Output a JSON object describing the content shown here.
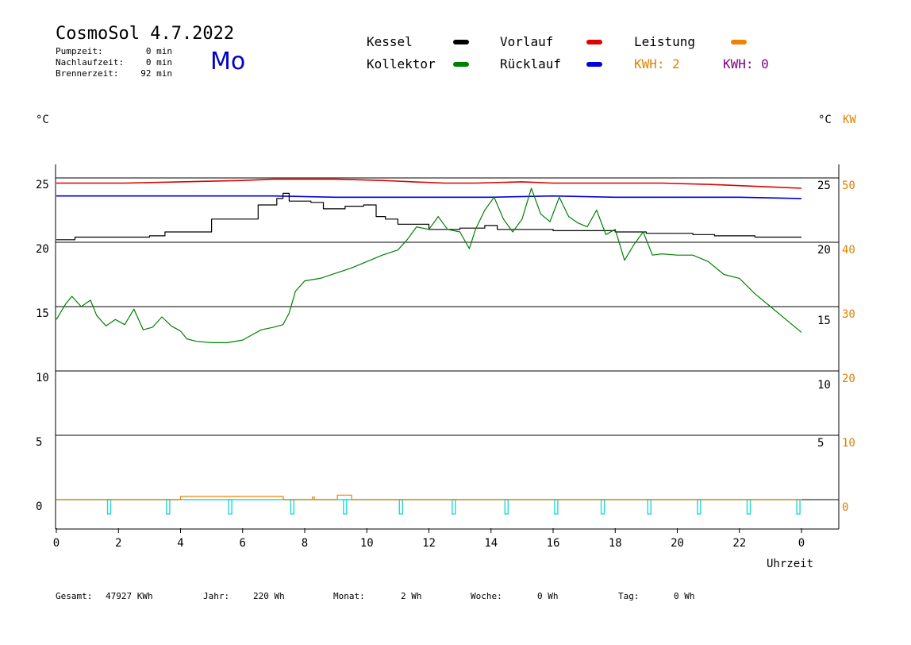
{
  "header": {
    "title": "CosmoSol 4.7.2022",
    "weekday": "Mo",
    "stats": [
      {
        "label": "Pumpzeit:",
        "value": "0 min"
      },
      {
        "label": "Nachlaufzeit:",
        "value": "0 min"
      },
      {
        "label": "Brennerzeit:",
        "value": "92 min"
      }
    ]
  },
  "legend": {
    "kessel": {
      "label": "Kessel",
      "color": "#000000"
    },
    "kollektor": {
      "label": "Kollektor",
      "color": "#008000"
    },
    "vorlauf": {
      "label": "Vorlauf",
      "color": "#e00000"
    },
    "ruecklauf": {
      "label": "Rücklauf",
      "color": "#0000e0"
    },
    "leistung": {
      "label": "Leistung",
      "color": "#f08000"
    },
    "kwh1": {
      "label": "KWH: 2",
      "color": "#e08000"
    },
    "kwh2": {
      "label": "KWH: 0",
      "color": "#800080"
    }
  },
  "axes": {
    "left_unit": "°C",
    "right_unit1": "°C",
    "right_unit2": "KW",
    "xlabel": "Uhrzeit"
  },
  "footer": {
    "gesamt_label": "Gesamt:",
    "gesamt_value": "47927 KWh",
    "jahr_label": "Jahr:",
    "jahr_value": "220 Wh",
    "monat_label": "Monat:",
    "monat_value": "2 Wh",
    "woche_label": "Woche:",
    "woche_value": "0 Wh",
    "tag_label": "Tag:",
    "tag_value": "0 Wh"
  },
  "chart_data": {
    "type": "line",
    "x_range": [
      0,
      24
    ],
    "x_ticks": [
      "0",
      "2",
      "4",
      "6",
      "8",
      "10",
      "12",
      "14",
      "16",
      "18",
      "20",
      "22",
      "0"
    ],
    "y_left_range": [
      -2,
      27
    ],
    "y_left_ticks": [
      "0",
      "5",
      "10",
      "15",
      "20",
      "25"
    ],
    "y_right1_ticks": [
      "5",
      "10",
      "15",
      "20",
      "25"
    ],
    "y_right2_ticks": [
      "0",
      "10",
      "20",
      "30",
      "40",
      "50"
    ],
    "grid_y": [
      5,
      10,
      15,
      20,
      25
    ],
    "series": [
      {
        "name": "Vorlauf",
        "color": "#e00000",
        "x": [
          0,
          2.2,
          4,
          6,
          7,
          9,
          10.5,
          11.5,
          12.5,
          13.5,
          15,
          16,
          18,
          19.5,
          21,
          22,
          23,
          24
        ],
        "y": [
          24.6,
          24.6,
          24.7,
          24.8,
          24.9,
          24.9,
          24.8,
          24.7,
          24.6,
          24.6,
          24.7,
          24.6,
          24.6,
          24.6,
          24.5,
          24.4,
          24.3,
          24.2
        ]
      },
      {
        "name": "Rücklauf",
        "color": "#0000e0",
        "x": [
          0,
          4,
          7,
          9,
          10,
          12,
          14,
          16,
          18,
          20,
          22,
          24
        ],
        "y": [
          23.6,
          23.6,
          23.6,
          23.5,
          23.5,
          23.5,
          23.5,
          23.6,
          23.5,
          23.5,
          23.5,
          23.4
        ]
      },
      {
        "name": "Kessel",
        "color": "#000000",
        "x": [
          0,
          0.6,
          3,
          3.5,
          5,
          6.5,
          7.1,
          7.3,
          7.5,
          8.2,
          8.6,
          9.3,
          9.9,
          10.3,
          10.6,
          11,
          12,
          13,
          13.8,
          14.2,
          16,
          18,
          19,
          20.5,
          21.2,
          22.5,
          24
        ],
        "y": [
          20.2,
          20.4,
          20.5,
          20.8,
          21.8,
          22.9,
          23.4,
          23.8,
          23.2,
          23.1,
          22.6,
          22.8,
          22.9,
          22.0,
          21.8,
          21.4,
          21.0,
          21.1,
          21.3,
          21.0,
          20.9,
          20.8,
          20.7,
          20.6,
          20.5,
          20.4,
          20.4
        ]
      },
      {
        "name": "Kollektor",
        "color": "#008000",
        "x": [
          0,
          0.3,
          0.5,
          0.8,
          1.1,
          1.3,
          1.6,
          1.9,
          2.2,
          2.5,
          2.8,
          3.1,
          3.4,
          3.7,
          4.0,
          4.2,
          4.5,
          5,
          5.5,
          6,
          6.3,
          6.6,
          7,
          7.3,
          7.5,
          7.7,
          8,
          8.5,
          9,
          9.5,
          10,
          10.5,
          11,
          11.3,
          11.6,
          12,
          12.3,
          12.6,
          13,
          13.3,
          13.5,
          13.8,
          14.1,
          14.4,
          14.7,
          15,
          15.3,
          15.6,
          15.9,
          16.2,
          16.5,
          16.8,
          17.1,
          17.4,
          17.7,
          18,
          18.3,
          18.6,
          18.9,
          19.2,
          19.5,
          20,
          20.5,
          21,
          21.5,
          22,
          22.5,
          23,
          23.5,
          24
        ],
        "y": [
          14.0,
          15.2,
          15.8,
          15.0,
          15.5,
          14.3,
          13.5,
          14.0,
          13.6,
          14.8,
          13.2,
          13.4,
          14.2,
          13.5,
          13.1,
          12.5,
          12.3,
          12.2,
          12.2,
          12.4,
          12.8,
          13.2,
          13.4,
          13.6,
          14.5,
          16.2,
          17.0,
          17.2,
          17.6,
          18.0,
          18.5,
          19.0,
          19.4,
          20.2,
          21.2,
          21.0,
          22.0,
          21.0,
          20.8,
          19.5,
          21.0,
          22.5,
          23.5,
          21.8,
          20.8,
          21.8,
          24.2,
          22.2,
          21.6,
          23.5,
          22.0,
          21.5,
          21.2,
          22.5,
          20.6,
          21.0,
          18.6,
          19.8,
          20.8,
          19.0,
          19.1,
          19.0,
          19.0,
          18.5,
          17.5,
          17.2,
          16.0,
          15.0,
          14.0,
          13.0
        ]
      },
      {
        "name": "Leistung",
        "color": "#f08000",
        "x": [
          0,
          3.9,
          4.0,
          7.3,
          7.31,
          8.2,
          8.25,
          8.3,
          8.31,
          9.0,
          9.05,
          9.5,
          9.51,
          24
        ],
        "y": [
          0,
          0,
          0.25,
          0.25,
          0,
          0,
          0.2,
          0.2,
          0,
          0,
          0.35,
          0.35,
          0,
          0
        ]
      }
    ],
    "pump_pulses_hours": [
      1.7,
      3.6,
      5.6,
      7.6,
      9.3,
      11.1,
      12.8,
      14.5,
      16.1,
      17.6,
      19.1,
      20.7,
      22.3,
      23.9
    ]
  }
}
